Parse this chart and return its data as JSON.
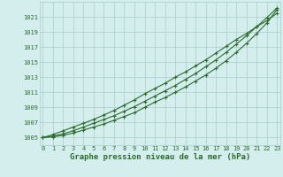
{
  "title": "Graphe pression niveau de la mer (hPa)",
  "xlabel_hours": [
    0,
    1,
    2,
    3,
    4,
    5,
    6,
    7,
    8,
    9,
    10,
    11,
    12,
    13,
    14,
    15,
    16,
    17,
    18,
    19,
    20,
    21,
    22,
    23
  ],
  "line1": [
    1005.0,
    1005.1,
    1005.3,
    1005.6,
    1006.0,
    1006.4,
    1006.8,
    1007.3,
    1007.8,
    1008.3,
    1009.0,
    1009.7,
    1010.3,
    1011.0,
    1011.7,
    1012.5,
    1013.3,
    1014.2,
    1015.2,
    1016.3,
    1017.5,
    1018.8,
    1020.2,
    1022.0
  ],
  "line2": [
    1005.0,
    1005.2,
    1005.5,
    1005.9,
    1006.4,
    1006.9,
    1007.4,
    1007.9,
    1008.5,
    1009.1,
    1009.8,
    1010.5,
    1011.2,
    1011.9,
    1012.7,
    1013.5,
    1014.4,
    1015.3,
    1016.3,
    1017.4,
    1018.5,
    1019.7,
    1020.9,
    1022.2
  ],
  "line3": [
    1005.0,
    1005.4,
    1005.9,
    1006.4,
    1006.9,
    1007.4,
    1008.0,
    1008.6,
    1009.3,
    1010.0,
    1010.8,
    1011.5,
    1012.2,
    1013.0,
    1013.7,
    1014.5,
    1015.3,
    1016.2,
    1017.1,
    1018.0,
    1018.8,
    1019.7,
    1020.5,
    1021.5
  ],
  "line_color": "#2d6b2d",
  "bg_color": "#d4eeee",
  "grid_color": "#aacccc",
  "text_color": "#2d6b2d",
  "ylim_min": 1004.0,
  "ylim_max": 1023.0,
  "yticks": [
    1005,
    1007,
    1009,
    1011,
    1013,
    1015,
    1017,
    1019,
    1021
  ],
  "marker": "+",
  "marker_size": 3.5,
  "linewidth": 0.8,
  "title_fontsize": 6.5,
  "tick_fontsize": 5.0
}
